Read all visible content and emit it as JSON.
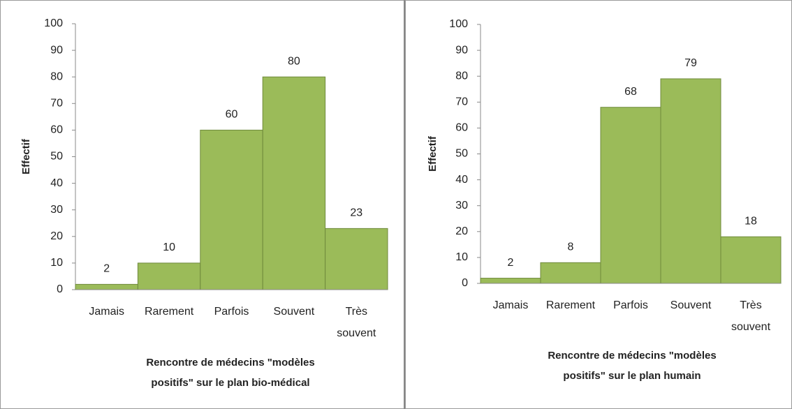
{
  "chart_data": [
    {
      "type": "bar",
      "ylabel": "Effectif",
      "xlabel": [
        "Rencontre de médecins \"modèles",
        "positifs\" sur le plan bio-médical"
      ],
      "categories": [
        "Jamais",
        "Rarement",
        "Parfois",
        "Souvent",
        "Très souvent"
      ],
      "values": [
        2,
        10,
        60,
        80,
        23
      ],
      "color": "#9bbb59",
      "ylim": [
        0,
        100
      ],
      "yticks": [
        0,
        10,
        20,
        30,
        40,
        50,
        60,
        70,
        80,
        90,
        100
      ]
    },
    {
      "type": "bar",
      "ylabel": "Effectif",
      "xlabel": [
        "Rencontre de médecins \"modèles",
        "positifs\" sur le plan humain"
      ],
      "categories": [
        "Jamais",
        "Rarement",
        "Parfois",
        "Souvent",
        "Très souvent"
      ],
      "values": [
        2,
        8,
        68,
        79,
        18
      ],
      "color": "#9bbb59",
      "ylim": [
        0,
        100
      ],
      "yticks": [
        0,
        10,
        20,
        30,
        40,
        50,
        60,
        70,
        80,
        90,
        100
      ]
    }
  ]
}
